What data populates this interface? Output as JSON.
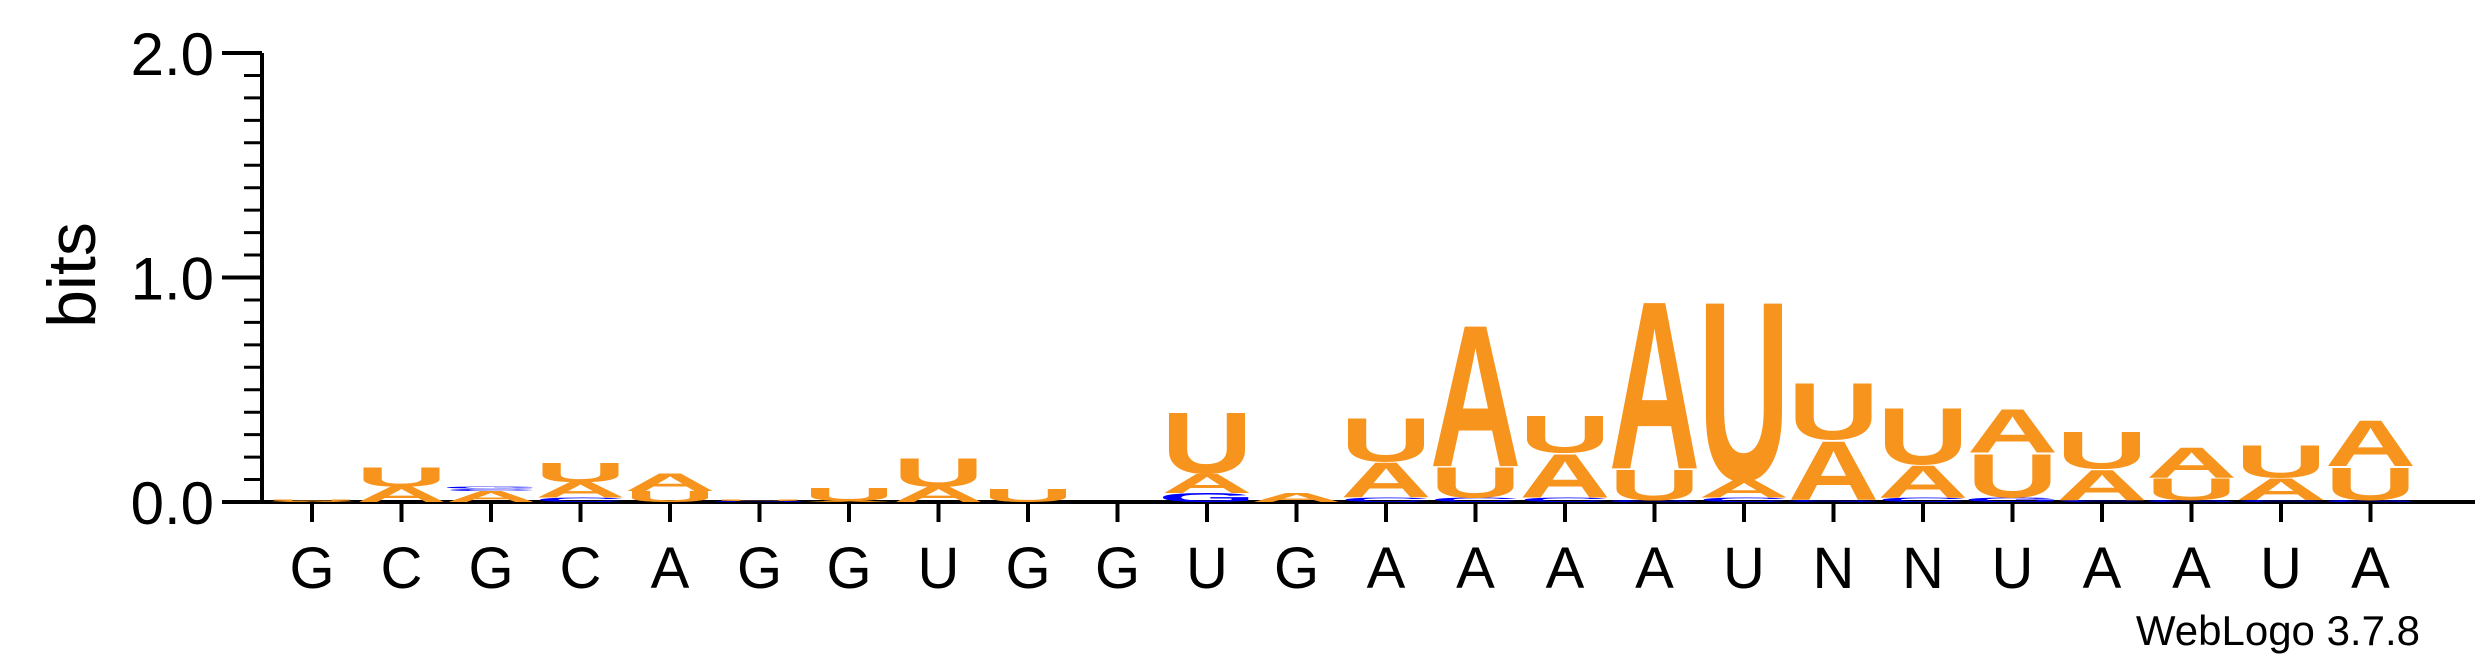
{
  "chart_data": {
    "type": "sequence-logo",
    "ylabel": "bits",
    "ylim": [
      0,
      2
    ],
    "yticks": [
      {
        "value": 0,
        "label": "0.0"
      },
      {
        "value": 1,
        "label": "1.0"
      },
      {
        "value": 2,
        "label": "2.0"
      }
    ],
    "consensus": [
      "G",
      "C",
      "G",
      "C",
      "A",
      "G",
      "G",
      "U",
      "G",
      "G",
      "U",
      "G",
      "A",
      "A",
      "A",
      "A",
      "U",
      "N",
      "N",
      "U",
      "A",
      "A",
      "U",
      "A"
    ],
    "colors": {
      "A": "#F7941D",
      "U": "#F7941D",
      "C": "#0000FF",
      "G": "#0000FF",
      "axis": "#000000"
    },
    "positions": [
      {
        "stack": [
          {
            "letter": "A",
            "bits": 0.005
          },
          {
            "letter": "U",
            "bits": 0.005
          }
        ]
      },
      {
        "stack": [
          {
            "letter": "A",
            "bits": 0.07
          },
          {
            "letter": "U",
            "bits": 0.09
          }
        ]
      },
      {
        "stack": [
          {
            "letter": "A",
            "bits": 0.05
          },
          {
            "letter": "C",
            "bits": 0.01
          },
          {
            "letter": "G",
            "bits": 0.01
          }
        ]
      },
      {
        "stack": [
          {
            "letter": "C",
            "bits": 0.02
          },
          {
            "letter": "A",
            "bits": 0.07
          },
          {
            "letter": "U",
            "bits": 0.09
          }
        ]
      },
      {
        "stack": [
          {
            "letter": "U",
            "bits": 0.05
          },
          {
            "letter": "A",
            "bits": 0.08
          }
        ]
      },
      {
        "stack": [
          {
            "letter": "G",
            "bits": 0.005
          },
          {
            "letter": "U",
            "bits": 0.005
          }
        ]
      },
      {
        "stack": [
          {
            "letter": "A",
            "bits": 0.005
          },
          {
            "letter": "U",
            "bits": 0.06
          }
        ]
      },
      {
        "stack": [
          {
            "letter": "A",
            "bits": 0.07
          },
          {
            "letter": "U",
            "bits": 0.13
          }
        ]
      },
      {
        "stack": [
          {
            "letter": "U",
            "bits": 0.06
          }
        ]
      },
      {
        "stack": []
      },
      {
        "stack": [
          {
            "letter": "G",
            "bits": 0.04
          },
          {
            "letter": "A",
            "bits": 0.09
          },
          {
            "letter": "U",
            "bits": 0.28
          }
        ]
      },
      {
        "stack": [
          {
            "letter": "A",
            "bits": 0.04
          }
        ]
      },
      {
        "stack": [
          {
            "letter": "C",
            "bits": 0.02
          },
          {
            "letter": "A",
            "bits": 0.16
          },
          {
            "letter": "U",
            "bits": 0.2
          }
        ]
      },
      {
        "stack": [
          {
            "letter": "C",
            "bits": 0.02
          },
          {
            "letter": "U",
            "bits": 0.14
          },
          {
            "letter": "A",
            "bits": 0.65
          }
        ]
      },
      {
        "stack": [
          {
            "letter": "C",
            "bits": 0.02
          },
          {
            "letter": "A",
            "bits": 0.2
          },
          {
            "letter": "U",
            "bits": 0.17
          }
        ]
      },
      {
        "stack": [
          {
            "letter": "G",
            "bits": 0.01
          },
          {
            "letter": "U",
            "bits": 0.14
          },
          {
            "letter": "A",
            "bits": 0.77
          }
        ]
      },
      {
        "stack": [
          {
            "letter": "C",
            "bits": 0.02
          },
          {
            "letter": "A",
            "bits": 0.08
          },
          {
            "letter": "U",
            "bits": 0.82
          }
        ]
      },
      {
        "stack": [
          {
            "letter": "G",
            "bits": 0.01
          },
          {
            "letter": "A",
            "bits": 0.27
          },
          {
            "letter": "U",
            "bits": 0.26
          }
        ]
      },
      {
        "stack": [
          {
            "letter": "C",
            "bits": 0.02
          },
          {
            "letter": "A",
            "bits": 0.15
          },
          {
            "letter": "U",
            "bits": 0.26
          }
        ]
      },
      {
        "stack": [
          {
            "letter": "G",
            "bits": 0.02
          },
          {
            "letter": "U",
            "bits": 0.2
          },
          {
            "letter": "A",
            "bits": 0.2
          }
        ]
      },
      {
        "stack": [
          {
            "letter": "C",
            "bits": 0.01
          },
          {
            "letter": "A",
            "bits": 0.14
          },
          {
            "letter": "U",
            "bits": 0.17
          }
        ]
      },
      {
        "stack": [
          {
            "letter": "G",
            "bits": 0.01
          },
          {
            "letter": "U",
            "bits": 0.1
          },
          {
            "letter": "A",
            "bits": 0.14
          }
        ]
      },
      {
        "stack": [
          {
            "letter": "C",
            "bits": 0.01
          },
          {
            "letter": "A",
            "bits": 0.1
          },
          {
            "letter": "U",
            "bits": 0.15
          }
        ]
      },
      {
        "stack": [
          {
            "letter": "G",
            "bits": 0.01
          },
          {
            "letter": "U",
            "bits": 0.15
          },
          {
            "letter": "A",
            "bits": 0.21
          }
        ]
      }
    ]
  },
  "footer": {
    "credit": "WebLogo 3.7.8"
  }
}
